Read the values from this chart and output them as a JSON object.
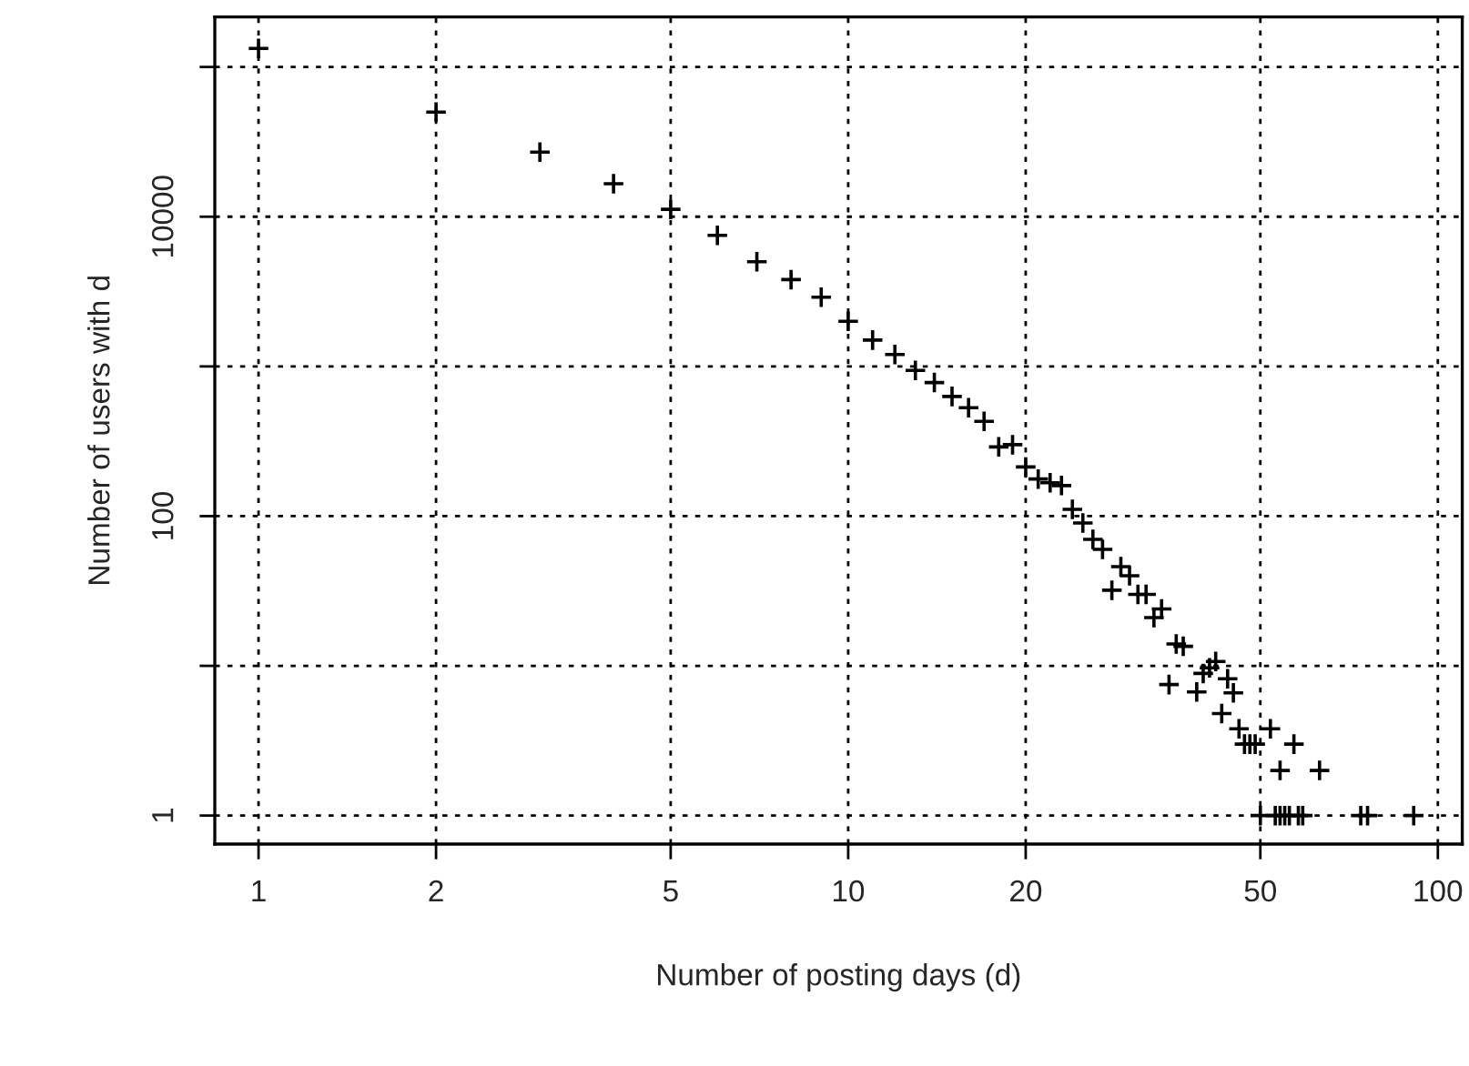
{
  "chart_data": {
    "type": "scatter",
    "xlabel": "Number of posting days (d)",
    "ylabel": "Number of users with d",
    "log": "xy",
    "grid": true,
    "marker": "cross",
    "xlim": [
      0.843,
      110
    ],
    "xticks": [
      1,
      2,
      5,
      10,
      20,
      50,
      100
    ],
    "ylim": [
      0.645,
      216000
    ],
    "yticks": [
      1,
      {
        "value": 10,
        "label": null
      },
      100,
      {
        "value": 1000,
        "label": null
      },
      10000,
      {
        "value": 100000,
        "label": null
      }
    ],
    "series": [
      {
        "color": "#000000",
        "x": [
          1,
          2,
          3,
          4,
          5,
          6,
          7,
          8,
          9,
          10,
          11,
          12,
          13,
          14,
          15,
          16,
          17,
          18,
          19,
          20,
          21,
          22,
          23,
          24,
          25,
          26,
          27,
          28,
          29,
          30,
          31,
          32,
          33,
          34,
          35,
          36,
          37,
          39,
          40,
          41,
          42,
          43,
          44,
          45,
          46,
          47,
          48,
          49,
          52,
          54,
          57,
          63,
          50,
          53,
          54,
          55,
          56,
          58,
          59,
          74,
          76,
          91
        ],
        "values": [
          133000,
          50000,
          27000,
          16600,
          11200,
          7500,
          5000,
          3800,
          2900,
          2000,
          1500,
          1200,
          940,
          780,
          630,
          530,
          430,
          290,
          300,
          213,
          177,
          167,
          160,
          111,
          90,
          70,
          60,
          32,
          46,
          40,
          30,
          30,
          21,
          24,
          7.5,
          14,
          13.5,
          6.7,
          8.9,
          9.7,
          10.7,
          4.8,
          8.2,
          6.6,
          3.8,
          3,
          3,
          3,
          3.8,
          2,
          3,
          2,
          1,
          1,
          1,
          1,
          1,
          1,
          1,
          1,
          1,
          1
        ]
      }
    ]
  }
}
